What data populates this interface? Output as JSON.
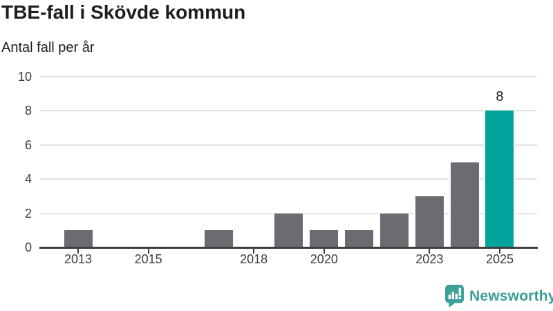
{
  "title": "TBE-fall i Skövde kommun",
  "subtitle": "Antal fall per år",
  "branding": {
    "logo_text": "Newsworthy",
    "logo_icon": "newsworthy-bar-chart-speech-bubble-icon",
    "brand_color": "#389e96"
  },
  "colors": {
    "bar_default": "#6b6b71",
    "bar_highlight": "#00a49c",
    "gridline": "#e2e2e2",
    "axis": "#3f3f3f",
    "tick_text": "#3c3c3c",
    "title_text": "#1d1d1b"
  },
  "chart_data": {
    "type": "bar",
    "title": "TBE-fall i Skövde kommun",
    "ylabel": "Antal fall per år",
    "xlabel": "",
    "categories": [
      2013,
      2014,
      2015,
      2016,
      2017,
      2018,
      2019,
      2020,
      2021,
      2022,
      2023,
      2024,
      2025
    ],
    "values": [
      1,
      0,
      0,
      0,
      1,
      0,
      2,
      1,
      1,
      2,
      3,
      5,
      8
    ],
    "x_tick_labels": [
      "2013",
      "2015",
      "2018",
      "2020",
      "2023",
      "2025"
    ],
    "y_ticks": [
      0,
      2,
      4,
      6,
      8,
      10
    ],
    "ylim": [
      0,
      10
    ],
    "grid": "horizontal",
    "legend": "none",
    "highlight_category": 2025,
    "data_labels": [
      {
        "category": 2025,
        "text": "8"
      }
    ]
  }
}
